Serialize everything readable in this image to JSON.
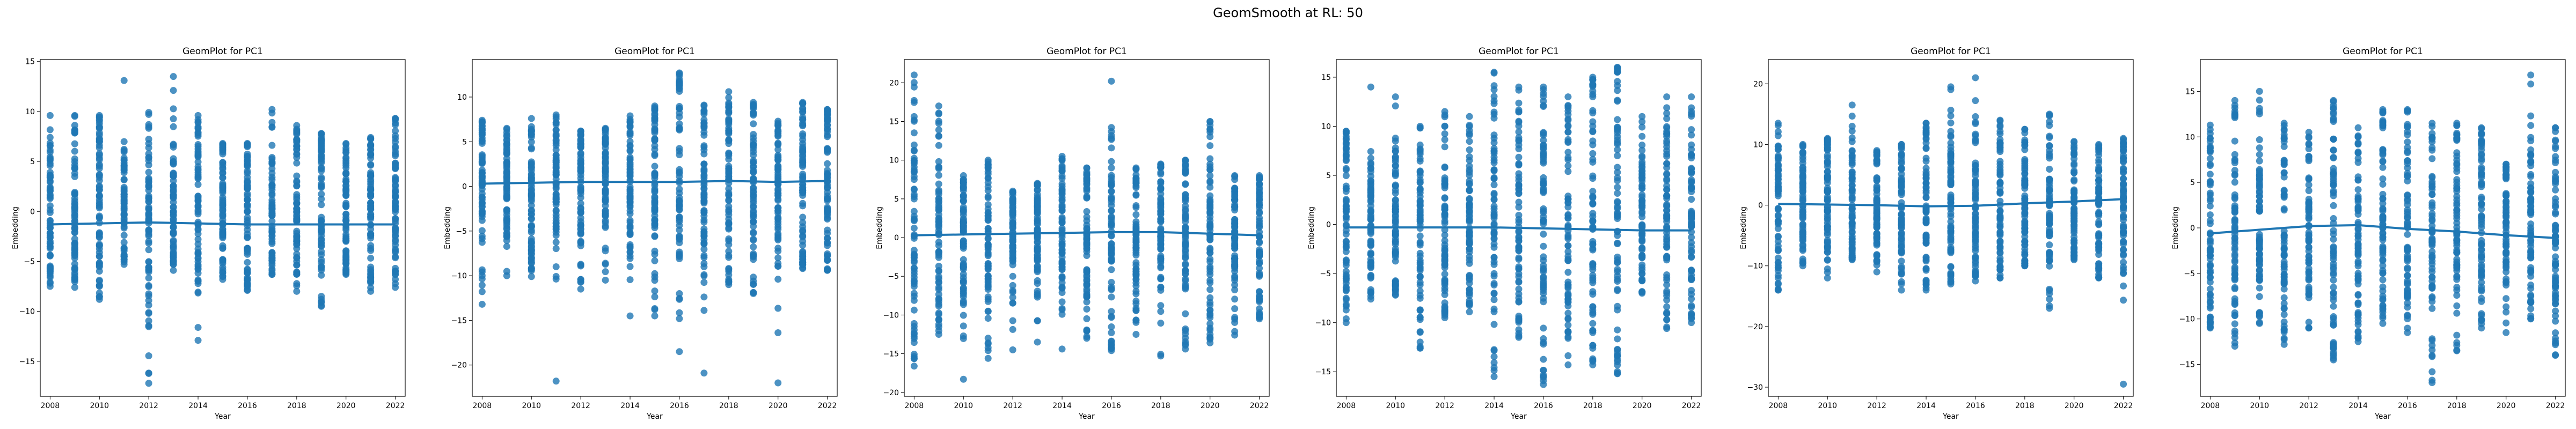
{
  "figure": {
    "suptitle": "GeomSmooth at RL: 50"
  },
  "colors": {
    "points": "#1f77b4",
    "line": "#1f77b4",
    "axes": "#000000"
  },
  "chart_data": [
    {
      "type": "scatter",
      "title": "GeomPlot for PC1",
      "xlabel": "Year",
      "ylabel": "Embedding",
      "xlim": [
        2007.6,
        2022.4
      ],
      "ylim": [
        -18.5,
        15.2
      ],
      "xticks": [
        2008,
        2010,
        2012,
        2014,
        2016,
        2018,
        2020,
        2022
      ],
      "yticks": [
        -15,
        -10,
        -5,
        0,
        5,
        10,
        15
      ],
      "grid": false,
      "years": [
        2008,
        2009,
        2010,
        2011,
        2012,
        2013,
        2014,
        2015,
        2016,
        2017,
        2018,
        2019,
        2020,
        2021,
        2022
      ],
      "column_min": [
        -7.5,
        -7.6,
        -8.8,
        -5.3,
        -17.2,
        -5.9,
        -12.9,
        -6.8,
        -7.9,
        -6.3,
        -8.0,
        -9.5,
        -6.3,
        -8.0,
        -7.6
      ],
      "column_max": [
        9.6,
        9.6,
        9.6,
        13.1,
        9.9,
        13.5,
        9.6,
        6.8,
        6.8,
        10.2,
        8.6,
        7.8,
        6.8,
        7.4,
        9.3
      ],
      "smooth": {
        "x": [
          2008,
          2010,
          2012,
          2014,
          2016,
          2018,
          2020,
          2022
        ],
        "y": [
          -1.3,
          -1.2,
          -1.1,
          -1.2,
          -1.3,
          -1.3,
          -1.3,
          -1.3
        ]
      }
    },
    {
      "type": "scatter",
      "title": "GeomPlot for PC1",
      "xlabel": "Year",
      "ylabel": "Embedding",
      "xlim": [
        2007.6,
        2022.4
      ],
      "ylim": [
        -23.5,
        14.2
      ],
      "xticks": [
        2008,
        2010,
        2012,
        2014,
        2016,
        2018,
        2020,
        2022
      ],
      "yticks": [
        -20,
        -15,
        -10,
        -5,
        0,
        5,
        10
      ],
      "grid": false,
      "years": [
        2008,
        2009,
        2010,
        2011,
        2012,
        2013,
        2014,
        2015,
        2016,
        2017,
        2018,
        2019,
        2020,
        2021,
        2022
      ],
      "column_min": [
        -13.2,
        -10.0,
        -10.1,
        -21.8,
        -11.5,
        -10.5,
        -14.5,
        -14.5,
        -18.5,
        -20.9,
        -11.0,
        -12.0,
        -22.0,
        -9.2,
        -9.4
      ],
      "column_max": [
        7.4,
        6.5,
        7.6,
        8.0,
        6.2,
        6.5,
        7.9,
        9.0,
        12.7,
        9.1,
        10.6,
        9.4,
        7.3,
        9.4,
        8.6
      ],
      "smooth": {
        "x": [
          2008,
          2010,
          2012,
          2014,
          2016,
          2018,
          2020,
          2022
        ],
        "y": [
          0.3,
          0.4,
          0.5,
          0.5,
          0.5,
          0.6,
          0.5,
          0.6
        ]
      }
    },
    {
      "type": "scatter",
      "title": "GeomPlot for PC1",
      "xlabel": "Year",
      "ylabel": "Embedding",
      "xlim": [
        2007.6,
        2022.4
      ],
      "ylim": [
        -20.5,
        23.0
      ],
      "xticks": [
        2008,
        2010,
        2012,
        2014,
        2016,
        2018,
        2020,
        2022
      ],
      "yticks": [
        -20,
        -15,
        -10,
        -5,
        0,
        5,
        10,
        15,
        20
      ],
      "grid": false,
      "years": [
        2008,
        2009,
        2010,
        2011,
        2012,
        2013,
        2014,
        2015,
        2016,
        2017,
        2018,
        2019,
        2020,
        2021,
        2022
      ],
      "column_min": [
        -16.6,
        -12.5,
        -18.3,
        -15.6,
        -14.5,
        -13.5,
        -14.4,
        -13.0,
        -14.6,
        -12.5,
        -15.3,
        -14.4,
        -13.6,
        -12.6,
        -10.5
      ],
      "column_max": [
        21.0,
        17.0,
        8.0,
        10.0,
        6.0,
        7.0,
        10.5,
        9.0,
        20.2,
        9.0,
        9.5,
        10.0,
        15.0,
        8.0,
        8.0
      ],
      "smooth": {
        "x": [
          2008,
          2010,
          2012,
          2014,
          2016,
          2018,
          2020,
          2022
        ],
        "y": [
          0.3,
          0.4,
          0.5,
          0.6,
          0.7,
          0.7,
          0.5,
          0.3
        ]
      }
    },
    {
      "type": "scatter",
      "title": "GeomPlot for PC1",
      "xlabel": "Year",
      "ylabel": "Embedding",
      "xlim": [
        2007.6,
        2022.4
      ],
      "ylim": [
        -17.5,
        16.8
      ],
      "xticks": [
        2008,
        2010,
        2012,
        2014,
        2016,
        2018,
        2020,
        2022
      ],
      "yticks": [
        -15,
        -10,
        -5,
        0,
        5,
        10,
        15
      ],
      "grid": false,
      "years": [
        2008,
        2009,
        2010,
        2011,
        2012,
        2013,
        2014,
        2015,
        2016,
        2017,
        2018,
        2019,
        2020,
        2021,
        2022
      ],
      "column_min": [
        -10.0,
        -7.6,
        -7.2,
        -12.6,
        -9.5,
        -8.9,
        -15.5,
        -11.5,
        -16.3,
        -14.3,
        -14.3,
        -15.2,
        -7.0,
        -10.6,
        -10.0
      ],
      "column_max": [
        9.5,
        14.0,
        13.0,
        10.0,
        11.5,
        11.0,
        15.5,
        14.0,
        14.0,
        13.0,
        15.0,
        16.0,
        11.0,
        13.0,
        13.0
      ],
      "smooth": {
        "x": [
          2008,
          2010,
          2012,
          2014,
          2016,
          2018,
          2020,
          2022
        ],
        "y": [
          -0.3,
          -0.3,
          -0.3,
          -0.3,
          -0.4,
          -0.5,
          -0.6,
          -0.6
        ]
      }
    },
    {
      "type": "scatter",
      "title": "GeomPlot for PC1",
      "xlabel": "Year",
      "ylabel": "Embedding",
      "xlim": [
        2007.6,
        2022.4
      ],
      "ylim": [
        -31.5,
        24.0
      ],
      "xticks": [
        2008,
        2010,
        2012,
        2014,
        2016,
        2018,
        2020,
        2022
      ],
      "yticks": [
        -30,
        -20,
        -10,
        0,
        10,
        20
      ],
      "grid": false,
      "years": [
        2008,
        2009,
        2010,
        2011,
        2012,
        2013,
        2014,
        2015,
        2016,
        2017,
        2018,
        2019,
        2020,
        2021,
        2022
      ],
      "column_min": [
        -14.0,
        -10.0,
        -12.0,
        -9.0,
        -11.0,
        -14.0,
        -14.0,
        -13.0,
        -12.5,
        -12.0,
        -10.0,
        -17.0,
        -9.0,
        -12.0,
        -29.5
      ],
      "column_max": [
        13.5,
        10.0,
        11.0,
        16.5,
        9.0,
        10.0,
        13.5,
        19.5,
        21.0,
        14.0,
        12.5,
        15.0,
        10.5,
        10.0,
        11.0
      ],
      "smooth": {
        "x": [
          2008,
          2010,
          2012,
          2014,
          2016,
          2018,
          2020,
          2022
        ],
        "y": [
          0.2,
          0.1,
          0.0,
          -0.2,
          -0.1,
          0.3,
          0.6,
          1.0
        ]
      }
    },
    {
      "type": "scatter",
      "title": "GeomPlot for PC1",
      "xlabel": "Year",
      "ylabel": "Embedding",
      "xlim": [
        2007.6,
        2022.4
      ],
      "ylim": [
        -18.5,
        18.5
      ],
      "xticks": [
        2008,
        2010,
        2012,
        2014,
        2016,
        2018,
        2020,
        2022
      ],
      "yticks": [
        -15,
        -10,
        -5,
        0,
        5,
        10,
        15
      ],
      "grid": false,
      "years": [
        2008,
        2009,
        2010,
        2011,
        2012,
        2013,
        2014,
        2015,
        2016,
        2017,
        2018,
        2019,
        2020,
        2021,
        2022
      ],
      "column_min": [
        -11.0,
        -13.0,
        -10.5,
        -12.8,
        -11.0,
        -14.5,
        -12.5,
        -10.5,
        -11.5,
        -17.0,
        -13.5,
        -11.0,
        -11.5,
        -10.0,
        -14.0
      ],
      "column_max": [
        11.3,
        14.0,
        15.0,
        11.5,
        10.5,
        14.0,
        11.0,
        13.0,
        13.0,
        11.5,
        11.5,
        11.0,
        7.0,
        16.8,
        11.0
      ],
      "smooth": {
        "x": [
          2008,
          2010,
          2012,
          2014,
          2016,
          2018,
          2020,
          2022
        ],
        "y": [
          -0.6,
          -0.2,
          0.2,
          0.3,
          -0.1,
          -0.4,
          -0.8,
          -1.1
        ]
      }
    }
  ]
}
